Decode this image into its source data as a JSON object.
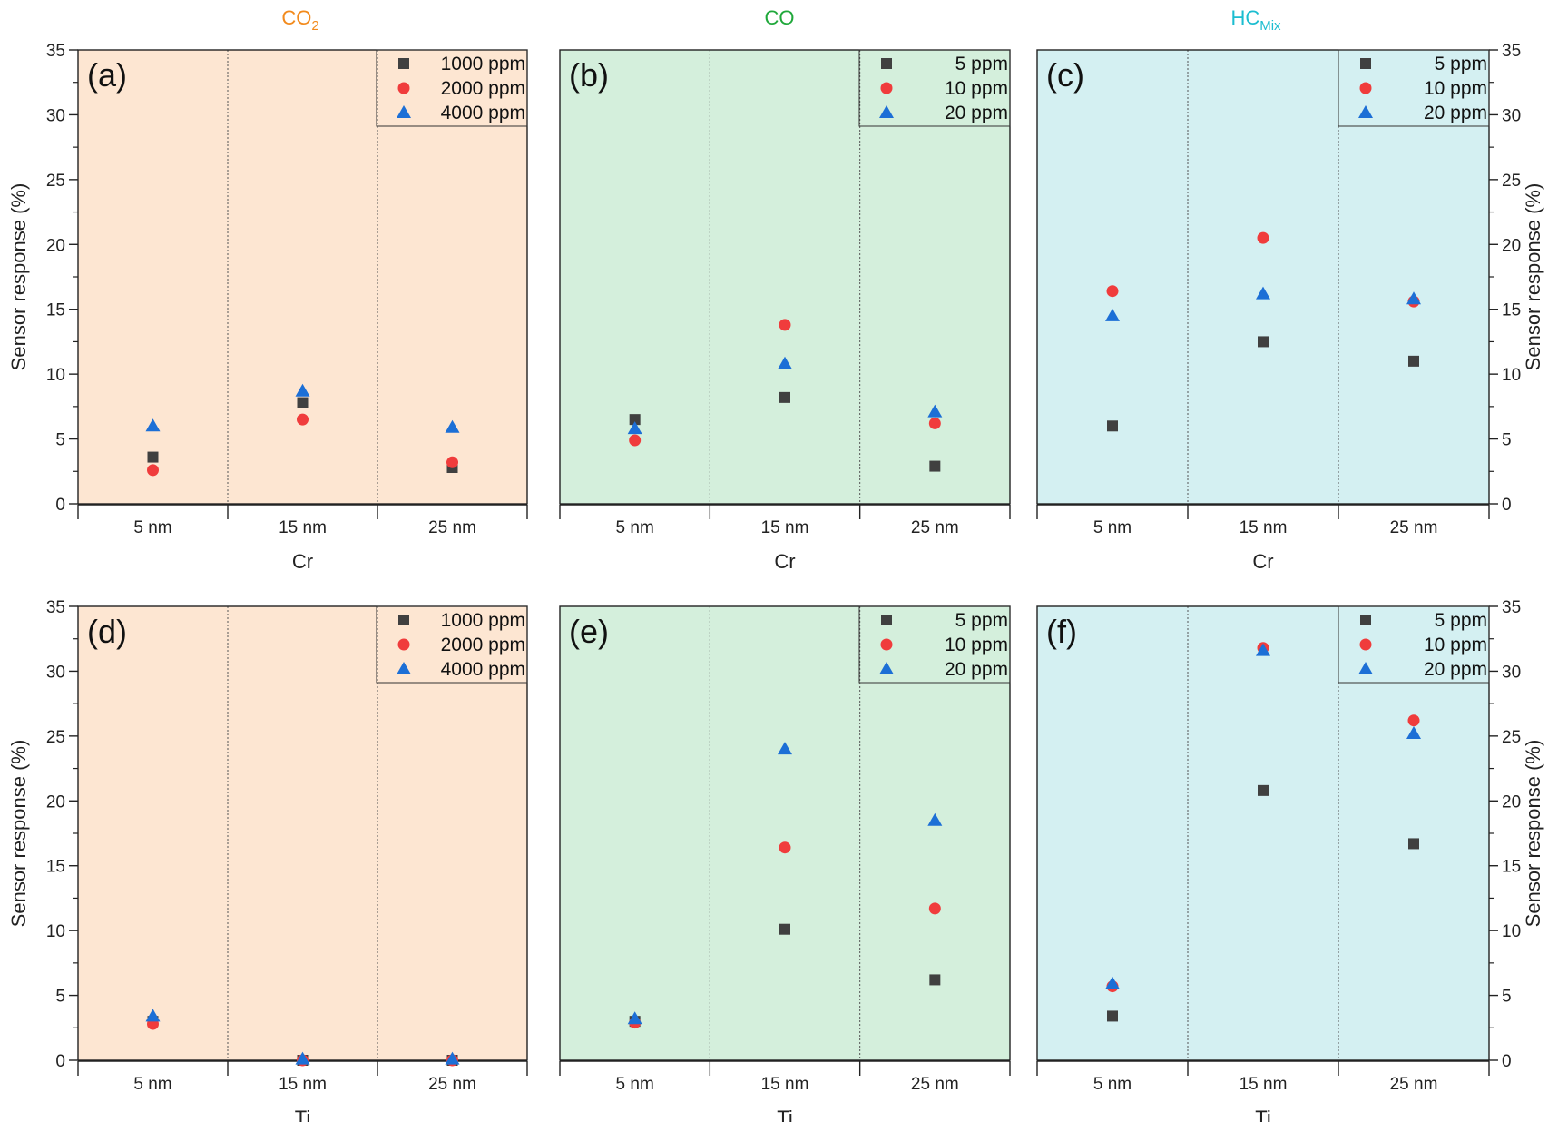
{
  "gas_headers": [
    {
      "base": "CO",
      "sub": "2",
      "color": "#f28a1c"
    },
    {
      "base": "CO",
      "sub": "",
      "color": "#1fa83a"
    },
    {
      "base": "HC",
      "sub": "Mix",
      "color": "#1cbdd0"
    }
  ],
  "marker_colors": {
    "square": "#404040",
    "circle": "#f03c3c",
    "triangle": "#1c6fd6"
  },
  "panel_colors": {
    "CO2": "#fde6d2",
    "CO": "#d4efdc",
    "HC": "#d4f0f2"
  },
  "chart_data": [
    {
      "type": "scatter",
      "panel": "(a)",
      "gas": "CO2",
      "xlabel": "Cr",
      "ylabel": "Sensor response (%)",
      "categories": [
        "5 nm",
        "15 nm",
        "25 nm"
      ],
      "ylim": [
        0,
        35
      ],
      "yticks": [
        0,
        5,
        10,
        15,
        20,
        25,
        30,
        35
      ],
      "legend_position": "top-right",
      "series": [
        {
          "name": "1000 ppm",
          "marker": "square",
          "values": [
            3.6,
            7.8,
            2.8
          ]
        },
        {
          "name": "2000 ppm",
          "marker": "circle",
          "values": [
            2.6,
            6.5,
            3.2
          ]
        },
        {
          "name": "4000 ppm",
          "marker": "triangle",
          "values": [
            6.0,
            8.7,
            5.9
          ]
        }
      ]
    },
    {
      "type": "scatter",
      "panel": "(b)",
      "gas": "CO",
      "xlabel": "Cr",
      "ylabel": "Sensor response (%)",
      "categories": [
        "5 nm",
        "15 nm",
        "25 nm"
      ],
      "ylim": [
        0,
        35
      ],
      "yticks": [
        0,
        5,
        10,
        15,
        20,
        25,
        30,
        35
      ],
      "legend_position": "top-right",
      "series": [
        {
          "name": "5 ppm",
          "marker": "square",
          "values": [
            6.5,
            8.2,
            2.9
          ]
        },
        {
          "name": "10 ppm",
          "marker": "circle",
          "values": [
            4.9,
            13.8,
            6.2
          ]
        },
        {
          "name": "20 ppm",
          "marker": "triangle",
          "values": [
            5.8,
            10.8,
            7.1
          ]
        }
      ]
    },
    {
      "type": "scatter",
      "panel": "(c)",
      "gas": "HC",
      "xlabel": "Cr",
      "ylabel": "Sensor response (%)",
      "categories": [
        "5 nm",
        "15 nm",
        "25 nm"
      ],
      "ylim": [
        0,
        35
      ],
      "yticks": [
        0,
        5,
        10,
        15,
        20,
        25,
        30,
        35
      ],
      "legend_position": "top-right",
      "series": [
        {
          "name": "5 ppm",
          "marker": "square",
          "values": [
            6.0,
            12.5,
            11.0
          ]
        },
        {
          "name": "10 ppm",
          "marker": "circle",
          "values": [
            16.4,
            20.5,
            15.6
          ]
        },
        {
          "name": "20 ppm",
          "marker": "triangle",
          "values": [
            14.5,
            16.2,
            15.8
          ]
        }
      ]
    },
    {
      "type": "scatter",
      "panel": "(d)",
      "gas": "CO2",
      "xlabel": "Ti",
      "ylabel": "Sensor response (%)",
      "categories": [
        "5 nm",
        "15 nm",
        "25 nm"
      ],
      "ylim": [
        0,
        35
      ],
      "yticks": [
        0,
        5,
        10,
        15,
        20,
        25,
        30,
        35
      ],
      "legend_position": "top-right",
      "series": [
        {
          "name": "1000 ppm",
          "marker": "square",
          "values": [
            3.0,
            0.0,
            0.0
          ]
        },
        {
          "name": "2000 ppm",
          "marker": "circle",
          "values": [
            2.8,
            0.0,
            0.0
          ]
        },
        {
          "name": "4000 ppm",
          "marker": "triangle",
          "values": [
            3.4,
            0.1,
            0.1
          ]
        }
      ]
    },
    {
      "type": "scatter",
      "panel": "(e)",
      "gas": "CO",
      "xlabel": "Ti",
      "ylabel": "Sensor response (%)",
      "categories": [
        "5 nm",
        "15 nm",
        "25 nm"
      ],
      "ylim": [
        0,
        35
      ],
      "yticks": [
        0,
        5,
        10,
        15,
        20,
        25,
        30,
        35
      ],
      "legend_position": "top-right",
      "series": [
        {
          "name": "5 ppm",
          "marker": "square",
          "values": [
            3.0,
            10.1,
            6.2
          ]
        },
        {
          "name": "10 ppm",
          "marker": "circle",
          "values": [
            2.9,
            16.4,
            11.7
          ]
        },
        {
          "name": "20 ppm",
          "marker": "triangle",
          "values": [
            3.2,
            24.0,
            18.5
          ]
        }
      ]
    },
    {
      "type": "scatter",
      "panel": "(f)",
      "gas": "HC",
      "xlabel": "Ti",
      "ylabel": "Sensor response (%)",
      "categories": [
        "5 nm",
        "15 nm",
        "25 nm"
      ],
      "ylim": [
        0,
        35
      ],
      "yticks": [
        0,
        5,
        10,
        15,
        20,
        25,
        30,
        35
      ],
      "legend_position": "top-right",
      "series": [
        {
          "name": "5 ppm",
          "marker": "square",
          "values": [
            3.4,
            20.8,
            16.7
          ]
        },
        {
          "name": "10 ppm",
          "marker": "circle",
          "values": [
            5.7,
            31.8,
            26.2
          ]
        },
        {
          "name": "20 ppm",
          "marker": "triangle",
          "values": [
            5.9,
            31.6,
            25.2
          ]
        }
      ]
    }
  ]
}
